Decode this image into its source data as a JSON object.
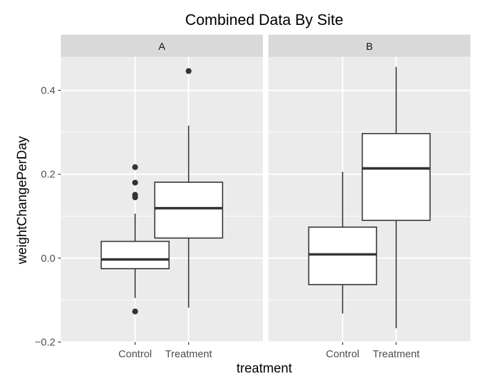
{
  "chart_data": {
    "type": "boxplot",
    "title": "Combined Data By Site",
    "xlabel": "treatment",
    "ylabel": "weightChangePerDay",
    "ylim": [
      -0.2,
      0.48
    ],
    "yticks": [
      -0.2,
      0.0,
      0.2,
      0.4
    ],
    "ytick_labels": [
      "−0.2",
      "0.0",
      "0.2",
      "0.4"
    ],
    "categories": [
      "Control",
      "Treatment"
    ],
    "facets": [
      {
        "label": "A",
        "boxes": [
          {
            "category": "Control",
            "lower_whisker": -0.095,
            "q1": -0.025,
            "median": -0.003,
            "q3": 0.04,
            "upper_whisker": 0.106,
            "outliers": [
              0.217,
              0.18,
              0.151,
              0.145,
              -0.127
            ]
          },
          {
            "category": "Treatment",
            "lower_whisker": -0.118,
            "q1": 0.048,
            "median": 0.119,
            "q3": 0.181,
            "upper_whisker": 0.316,
            "outliers": [
              0.446
            ]
          }
        ]
      },
      {
        "label": "B",
        "boxes": [
          {
            "category": "Control",
            "lower_whisker": -0.132,
            "q1": -0.063,
            "median": 0.009,
            "q3": 0.074,
            "upper_whisker": 0.206,
            "outliers": []
          },
          {
            "category": "Treatment",
            "lower_whisker": -0.167,
            "q1": 0.09,
            "median": 0.214,
            "q3": 0.297,
            "upper_whisker": 0.456,
            "outliers": []
          }
        ]
      }
    ],
    "grid": true,
    "colors": {
      "panel": "#ebebeb",
      "strip": "#d9d9d9",
      "box_fill": "#ffffff",
      "line": "#333333"
    }
  }
}
